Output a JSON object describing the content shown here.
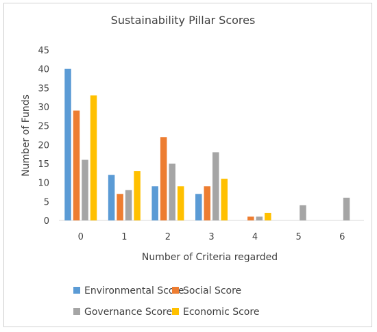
{
  "chart_data": {
    "type": "bar",
    "title": "Sustainability Pillar Scores",
    "xlabel": "Number of Criteria regarded",
    "ylabel": "Number of Funds",
    "categories": [
      "0",
      "1",
      "2",
      "3",
      "4",
      "5",
      "6"
    ],
    "ylim": [
      0,
      45
    ],
    "yticks": [
      "0",
      "5",
      "10",
      "15",
      "20",
      "25",
      "30",
      "35",
      "40",
      "45"
    ],
    "grid": false,
    "legend_position": "bottom",
    "series": [
      {
        "name": "Environmental Score",
        "color": "#5B9BD5",
        "values": [
          40,
          12,
          9,
          7,
          0,
          0,
          0
        ]
      },
      {
        "name": "Social Score",
        "color": "#ED7D31",
        "values": [
          29,
          7,
          22,
          9,
          1,
          0,
          0
        ]
      },
      {
        "name": "Governance Score",
        "color": "#A5A5A5",
        "values": [
          16,
          8,
          15,
          18,
          1,
          4,
          6
        ]
      },
      {
        "name": "Economic Score",
        "color": "#FFC000",
        "values": [
          33,
          13,
          9,
          11,
          2,
          0,
          0
        ]
      }
    ]
  }
}
